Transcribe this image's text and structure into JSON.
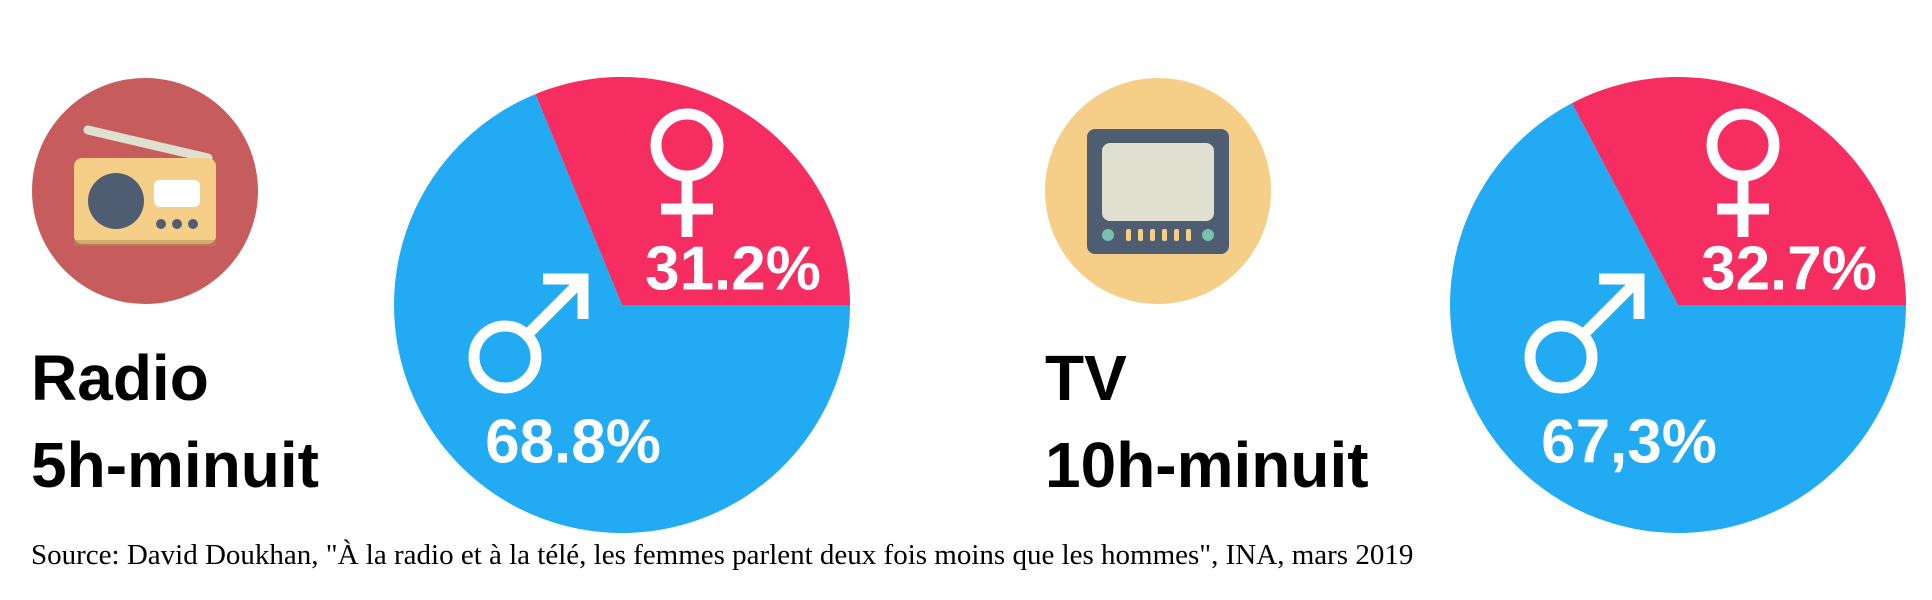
{
  "chart_data": [
    {
      "type": "pie",
      "title": "Radio",
      "subtitle": "5h-minuit",
      "values": [
        31.2,
        68.8
      ],
      "value_labels": [
        "31.2%",
        "68.8%"
      ],
      "colors": [
        "#f52d61",
        "#22aaf2"
      ]
    },
    {
      "type": "pie",
      "title": "TV",
      "subtitle": "10h-minuit",
      "values": [
        32.7,
        67.3
      ],
      "value_labels": [
        "32.7%",
        "67,3%"
      ],
      "colors": [
        "#f52d61",
        "#22aaf2"
      ]
    }
  ],
  "source": "Source: David Doukhan, \"À la radio et à la télé, les femmes parlent deux fois moins que les hommes\", INA, mars 2019"
}
